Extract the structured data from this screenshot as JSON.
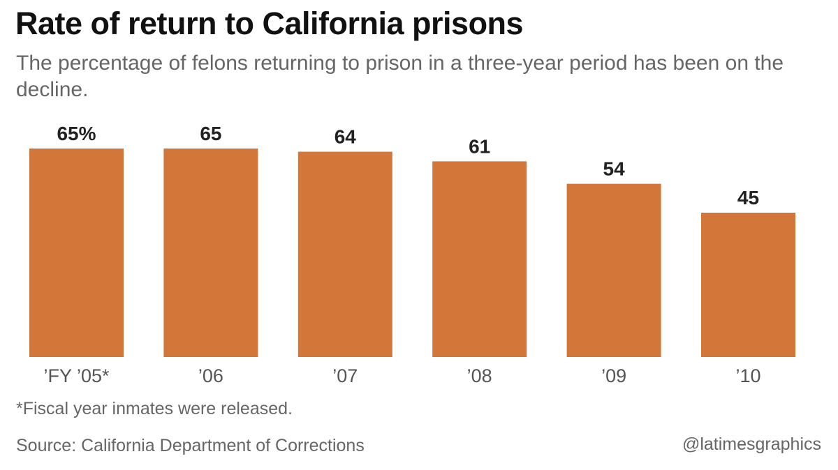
{
  "chart_data": {
    "type": "bar",
    "title": "Rate of return to California prisons",
    "subtitle": "The percentage of felons returning to prison in a three-year period has been on the decline.",
    "categories": [
      "’FY ’05*",
      "’06",
      "’07",
      "’08",
      "’09",
      "’10"
    ],
    "values": [
      65,
      65,
      64,
      61,
      54,
      45
    ],
    "value_labels": [
      "65%",
      "65",
      "64",
      "61",
      "54",
      "45"
    ],
    "xlabel": "",
    "ylabel": "",
    "ylim": [
      0,
      100
    ],
    "grid": false,
    "legend": "none",
    "bar_color": "#D2763A"
  },
  "note": "*Fiscal year inmates were released.",
  "source": "Source: California Department of Corrections",
  "credit": "@latimesgraphics"
}
